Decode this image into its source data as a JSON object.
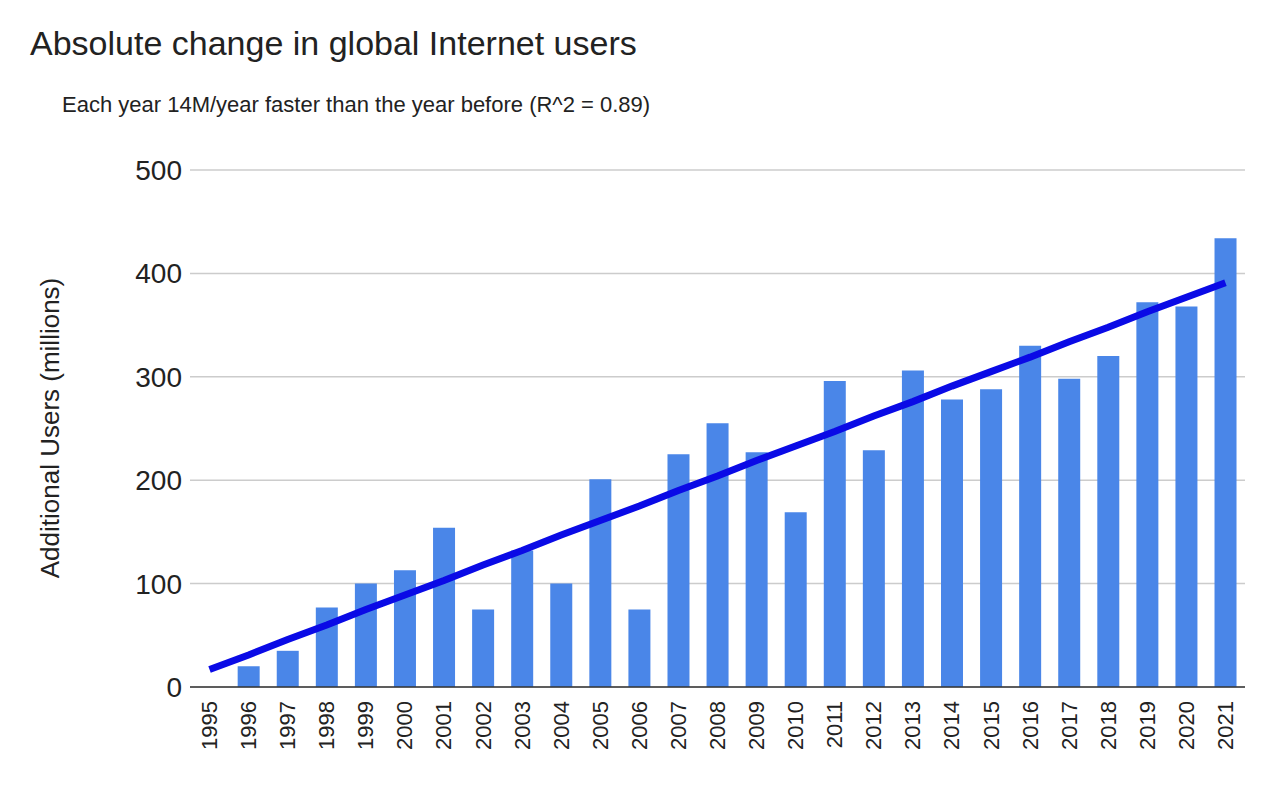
{
  "chart_data": {
    "type": "bar",
    "title": "Absolute change in global Internet users",
    "subtitle": "Each year 14M/year faster than the year before  (R^2 = 0.89)",
    "y_label": "Additional Users (millions)",
    "categories": [
      "1995",
      "1996",
      "1997",
      "1998",
      "1999",
      "2000",
      "2001",
      "2002",
      "2003",
      "2004",
      "2005",
      "2006",
      "2007",
      "2008",
      "2009",
      "2010",
      "2011",
      "2012",
      "2013",
      "2014",
      "2015",
      "2016",
      "2017",
      "2018",
      "2019",
      "2020",
      "2021"
    ],
    "series": [
      {
        "type": "bar",
        "color": "#4a86e8",
        "values": [
          0,
          20,
          35,
          77,
          100,
          113,
          154,
          75,
          132,
          100,
          201,
          75,
          225,
          255,
          227,
          169,
          296,
          229,
          306,
          278,
          288,
          330,
          298,
          320,
          372,
          368,
          434
        ]
      },
      {
        "type": "line",
        "color": "#0a0ae6",
        "values": [
          17,
          31,
          46,
          60,
          75,
          89,
          103,
          118,
          132,
          147,
          161,
          175,
          190,
          204,
          219,
          233,
          247,
          262,
          276,
          291,
          305,
          319,
          334,
          348,
          363,
          377,
          391
        ]
      }
    ],
    "ylim": [
      0,
      500
    ],
    "yticks": [
      0,
      100,
      200,
      300,
      400,
      500
    ],
    "grid": true
  }
}
